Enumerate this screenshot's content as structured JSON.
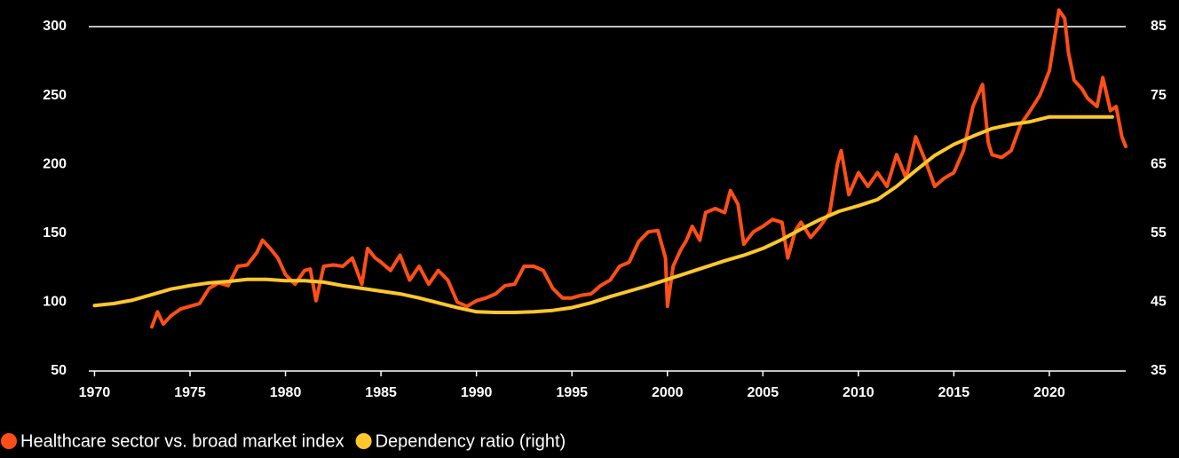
{
  "chart_data": {
    "type": "line",
    "xlim": [
      1969.7,
      2024
    ],
    "xticks": [
      1970,
      1975,
      1980,
      1985,
      1990,
      1995,
      2000,
      2005,
      2010,
      2015,
      2020
    ],
    "ylim": [
      50,
      300
    ],
    "yticks": [
      50,
      100,
      150,
      200,
      250,
      300
    ],
    "y2lim": [
      35,
      85
    ],
    "y2ticks": [
      35,
      45,
      55,
      65,
      75,
      85
    ],
    "series": [
      {
        "name": "Healthcare sector vs. broad market index",
        "color": "#ff4f17",
        "x": [
          1973.0,
          1973.3,
          1973.6,
          1974,
          1974.5,
          1975,
          1975.5,
          1976,
          1976.5,
          1977,
          1977.5,
          1978,
          1978.5,
          1978.8,
          1979.2,
          1979.6,
          1980,
          1980.5,
          1981,
          1981.3,
          1981.6,
          1982,
          1982.5,
          1983,
          1983.5,
          1984,
          1984.3,
          1984.7,
          1985,
          1985.5,
          1986,
          1986.5,
          1987,
          1987.5,
          1988,
          1988.5,
          1989,
          1989.5,
          1990,
          1990.5,
          1991,
          1991.5,
          1992,
          1992.5,
          1993,
          1993.5,
          1994,
          1994.5,
          1995,
          1995.5,
          1996,
          1996.5,
          1997,
          1997.5,
          1998,
          1998.5,
          1999,
          1999.5,
          1999.9,
          2000.0,
          2000.3,
          2000.7,
          2001,
          2001.3,
          2001.7,
          2002,
          2002.5,
          2003,
          2003.3,
          2003.7,
          2004,
          2004.5,
          2005,
          2005.5,
          2006,
          2006.3,
          2006.7,
          2007,
          2007.5,
          2008,
          2008.5,
          2008.9,
          2009.1,
          2009.5,
          2010,
          2010.5,
          2011,
          2011.5,
          2012,
          2012.5,
          2013,
          2013.5,
          2014,
          2014.5,
          2015,
          2015.5,
          2016,
          2016.5,
          2016.8,
          2017,
          2017.5,
          2018,
          2018.5,
          2019,
          2019.5,
          2020,
          2020.3,
          2020.5,
          2020.8,
          2021.0,
          2021.3,
          2021.7,
          2022,
          2022.5,
          2022.8,
          2023.2,
          2023.5,
          2023.8,
          2024
        ],
        "values": [
          82,
          93,
          84,
          90,
          95,
          97,
          99,
          110,
          114,
          112,
          126,
          127,
          136,
          145,
          139,
          132,
          120,
          113,
          123,
          124,
          101,
          126,
          127,
          126,
          132,
          113,
          139,
          132,
          129,
          123,
          134,
          116,
          126,
          113,
          123,
          116,
          100,
          97,
          101,
          103,
          106,
          112,
          113,
          126,
          126,
          123,
          110,
          103,
          103,
          105,
          106,
          112,
          116,
          126,
          129,
          144,
          151,
          152,
          132,
          97,
          126,
          138,
          145,
          155,
          145,
          165,
          168,
          165,
          181,
          171,
          142,
          151,
          155,
          160,
          158,
          132,
          152,
          158,
          147,
          155,
          165,
          200,
          210,
          178,
          194,
          184,
          194,
          184,
          207,
          190,
          220,
          203,
          184,
          190,
          194,
          210,
          242,
          258,
          216,
          207,
          205,
          210,
          229,
          239,
          250,
          268,
          294,
          312,
          306,
          281,
          261,
          255,
          248,
          242,
          263,
          239,
          242,
          220,
          213
        ]
      },
      {
        "name": "Dependency ratio (right)",
        "color": "#ffc72c",
        "axis": "y2",
        "x": [
          1970,
          1971,
          1972,
          1973,
          1974,
          1975,
          1976,
          1977,
          1978,
          1979,
          1980,
          1981,
          1982,
          1983,
          1984,
          1985,
          1986,
          1987,
          1988,
          1989,
          1990,
          1991,
          1992,
          1993,
          1994,
          1995,
          1996,
          1997,
          1998,
          1999,
          2000,
          2001,
          2002,
          2003,
          2004,
          2005,
          2006,
          2007,
          2008,
          2009,
          2010,
          2011,
          2012,
          2013,
          2014,
          2015,
          2016,
          2017,
          2018,
          2019,
          2020,
          2021,
          2022,
          2023,
          2023.3
        ],
        "values": [
          44.5,
          44.8,
          45.3,
          46.1,
          46.9,
          47.4,
          47.8,
          48.0,
          48.3,
          48.3,
          48.1,
          48.1,
          47.9,
          47.4,
          47.0,
          46.6,
          46.2,
          45.6,
          44.9,
          44.2,
          43.6,
          43.5,
          43.5,
          43.6,
          43.8,
          44.2,
          44.9,
          45.8,
          46.6,
          47.4,
          48.3,
          49.2,
          50.1,
          51.0,
          51.8,
          52.8,
          54.1,
          55.6,
          57.0,
          58.2,
          59.0,
          59.9,
          61.8,
          64.1,
          66.3,
          67.9,
          69.1,
          70.2,
          70.8,
          71.2,
          71.9,
          71.9,
          71.9,
          71.9,
          71.9
        ]
      }
    ]
  }
}
